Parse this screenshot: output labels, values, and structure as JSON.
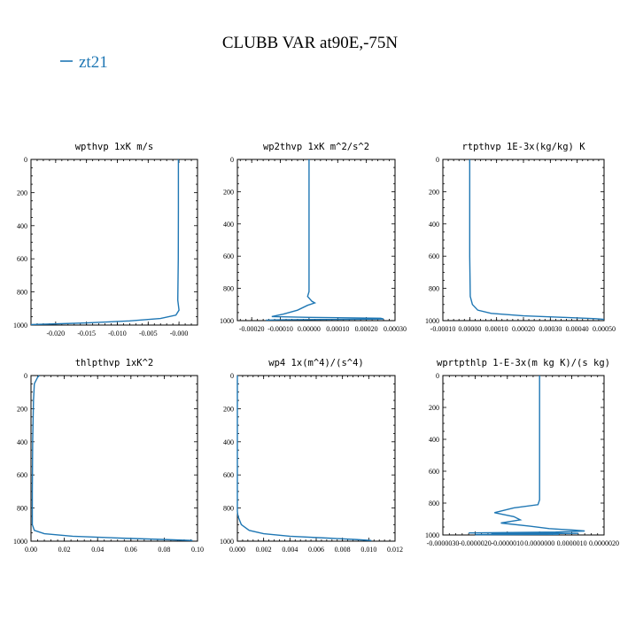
{
  "figure": {
    "title": "CLUBB VAR at90E,-75N",
    "legend": [
      {
        "label": "zt21",
        "color": "#1f77b4"
      }
    ]
  },
  "chart_data": [
    {
      "type": "line",
      "title": "wpthvp   1xK m/s",
      "xlim": [
        -0.024,
        0.003
      ],
      "xticks": [
        -0.02,
        -0.015,
        -0.01,
        -0.005,
        0.0
      ],
      "xtick_labels": [
        "-0.020",
        "-0.015",
        "-0.010",
        "-0.005",
        "-0.000"
      ],
      "ylim": [
        1000,
        0
      ],
      "yticks": [
        0,
        200,
        400,
        600,
        800,
        1000
      ],
      "ytick_labels": [
        "0",
        "200",
        "400",
        "600",
        "800",
        "1000"
      ],
      "series": [
        {
          "color": "#1f77b4",
          "points": [
            [
              -0.0001,
              0
            ],
            [
              -0.0001,
              300
            ],
            [
              -0.00012,
              600
            ],
            [
              -0.0002,
              850
            ],
            [
              0.0,
              910
            ],
            [
              -0.0005,
              940
            ],
            [
              -0.003,
              960
            ],
            [
              -0.008,
              975
            ],
            [
              -0.015,
              987
            ],
            [
              -0.021,
              994
            ],
            [
              -0.024,
              997
            ]
          ]
        }
      ]
    },
    {
      "type": "line",
      "title": "wp2thvp   1xK m^2/s^2",
      "xlim": [
        -0.00025,
        0.0003
      ],
      "xticks": [
        -0.0002,
        -0.0001,
        0.0,
        0.0001,
        0.0002,
        0.0003
      ],
      "xtick_labels": [
        "-0.00020",
        "-0.00010",
        "0.00000",
        "0.00010",
        "0.00020",
        "0.00030"
      ],
      "ylim": [
        1000,
        0
      ],
      "yticks": [
        0,
        200,
        400,
        600,
        800,
        1000
      ],
      "ytick_labels": [
        "0",
        "200",
        "400",
        "600",
        "800",
        "1000"
      ],
      "series": [
        {
          "color": "#1f77b4",
          "points": [
            [
              0.0,
              0
            ],
            [
              0.0,
              300
            ],
            [
              0.0,
              600
            ],
            [
              0.0,
              820
            ],
            [
              -5e-06,
              850
            ],
            [
              1e-05,
              880
            ],
            [
              2e-05,
              890
            ],
            [
              -5e-06,
              905
            ],
            [
              -4e-05,
              935
            ],
            [
              -9e-05,
              960
            ],
            [
              -0.00013,
              975
            ],
            [
              0.0,
              980
            ],
            [
              0.00025,
              985
            ],
            [
              0.00026,
              990
            ],
            [
              -0.0001,
              995
            ],
            [
              -0.00015,
              997
            ]
          ]
        }
      ]
    },
    {
      "type": "line",
      "title": "rtpthvp   1E-3x(kg/kg) K",
      "xlim": [
        -0.0001,
        0.0005
      ],
      "xticks": [
        -0.0001,
        0.0,
        0.0001,
        0.0002,
        0.0003,
        0.0004,
        0.0005
      ],
      "xtick_labels": [
        "-0.00010",
        "0.00000",
        "0.00010",
        "0.00020",
        "0.00030",
        "0.00040",
        "0.00050"
      ],
      "ylim": [
        1000,
        0
      ],
      "yticks": [
        0,
        200,
        400,
        600,
        800,
        1000
      ],
      "ytick_labels": [
        "0",
        "200",
        "400",
        "600",
        "800",
        "1000"
      ],
      "series": [
        {
          "color": "#1f77b4",
          "points": [
            [
              0.0,
              0
            ],
            [
              0.0,
              300
            ],
            [
              0.0,
              600
            ],
            [
              2e-06,
              850
            ],
            [
              1e-05,
              900
            ],
            [
              3e-05,
              935
            ],
            [
              8e-05,
              955
            ],
            [
              0.0002,
              970
            ],
            [
              0.00035,
              980
            ],
            [
              0.00047,
              988
            ],
            [
              0.0005,
              992
            ]
          ]
        }
      ]
    },
    {
      "type": "line",
      "title": "thlpthvp   1xK^2",
      "xlim": [
        0.0,
        0.1
      ],
      "xticks": [
        0.0,
        0.02,
        0.04,
        0.06,
        0.08,
        0.1
      ],
      "xtick_labels": [
        "0.00",
        "0.02",
        "0.04",
        "0.06",
        "0.08",
        "0.10"
      ],
      "ylim": [
        1000,
        0
      ],
      "yticks": [
        0,
        200,
        400,
        600,
        800,
        1000
      ],
      "ytick_labels": [
        "0",
        "200",
        "400",
        "600",
        "800",
        "1000"
      ],
      "series": [
        {
          "color": "#1f77b4",
          "points": [
            [
              0.005,
              0
            ],
            [
              0.004,
              10
            ],
            [
              0.002,
              50
            ],
            [
              0.0015,
              150
            ],
            [
              0.001,
              400
            ],
            [
              0.0008,
              700
            ],
            [
              0.0008,
              900
            ],
            [
              0.002,
              935
            ],
            [
              0.008,
              955
            ],
            [
              0.025,
              970
            ],
            [
              0.055,
              982
            ],
            [
              0.08,
              990
            ],
            [
              0.097,
              996
            ]
          ]
        }
      ]
    },
    {
      "type": "line",
      "title": "wp4   1x(m^4)/(s^4)",
      "xlim": [
        0.0,
        0.012
      ],
      "xticks": [
        0.0,
        0.002,
        0.004,
        0.006,
        0.008,
        0.01,
        0.012
      ],
      "xtick_labels": [
        "0.000",
        "0.002",
        "0.004",
        "0.006",
        "0.008",
        "0.010",
        "0.012"
      ],
      "ylim": [
        1000,
        0
      ],
      "yticks": [
        0,
        200,
        400,
        600,
        800,
        1000
      ],
      "ytick_labels": [
        "0",
        "200",
        "400",
        "600",
        "800",
        "1000"
      ],
      "series": [
        {
          "color": "#1f77b4",
          "points": [
            [
              0.0,
              0
            ],
            [
              0.0,
              300
            ],
            [
              0.0,
              600
            ],
            [
              0.0,
              820
            ],
            [
              5e-05,
              850
            ],
            [
              0.0003,
              900
            ],
            [
              0.0009,
              935
            ],
            [
              0.002,
              955
            ],
            [
              0.004,
              970
            ],
            [
              0.007,
              982
            ],
            [
              0.009,
              990
            ],
            [
              0.0102,
              996
            ]
          ]
        }
      ]
    },
    {
      "type": "line",
      "title": "wprtpthlp   1-E-3x(m kg K)/(s kg)",
      "xlim": [
        -3e-06,
        2e-06
      ],
      "xticks": [
        -3e-06,
        -2e-06,
        -1e-06,
        0.0,
        1e-06,
        2e-06
      ],
      "xtick_labels": [
        "-0.0000030",
        "-0.0000020",
        "-0.0000010",
        "0.0000000",
        "0.0000010",
        "0.0000020"
      ],
      "ylim": [
        1000,
        0
      ],
      "yticks": [
        0,
        200,
        400,
        600,
        800,
        1000
      ],
      "ytick_labels": [
        "0",
        "200",
        "400",
        "600",
        "800",
        "1000"
      ],
      "series": [
        {
          "color": "#1f77b4",
          "points": [
            [
              0.0,
              0
            ],
            [
              0.0,
              300
            ],
            [
              0.0,
              600
            ],
            [
              0.0,
              780
            ],
            [
              -5e-08,
              810
            ],
            [
              -8e-07,
              830
            ],
            [
              -1.4e-06,
              860
            ],
            [
              -8e-07,
              885
            ],
            [
              -6e-07,
              905
            ],
            [
              -1.2e-06,
              925
            ],
            [
              -3e-07,
              945
            ],
            [
              3e-07,
              960
            ],
            [
              1.1e-06,
              970
            ],
            [
              1.4e-06,
              975
            ],
            [
              5e-07,
              982
            ],
            [
              -2.2e-06,
              987
            ],
            [
              1.2e-06,
              990
            ],
            [
              -1.5e-06,
              993
            ],
            [
              6e-07,
              996
            ],
            [
              -2e-06,
              998
            ]
          ]
        }
      ]
    }
  ]
}
